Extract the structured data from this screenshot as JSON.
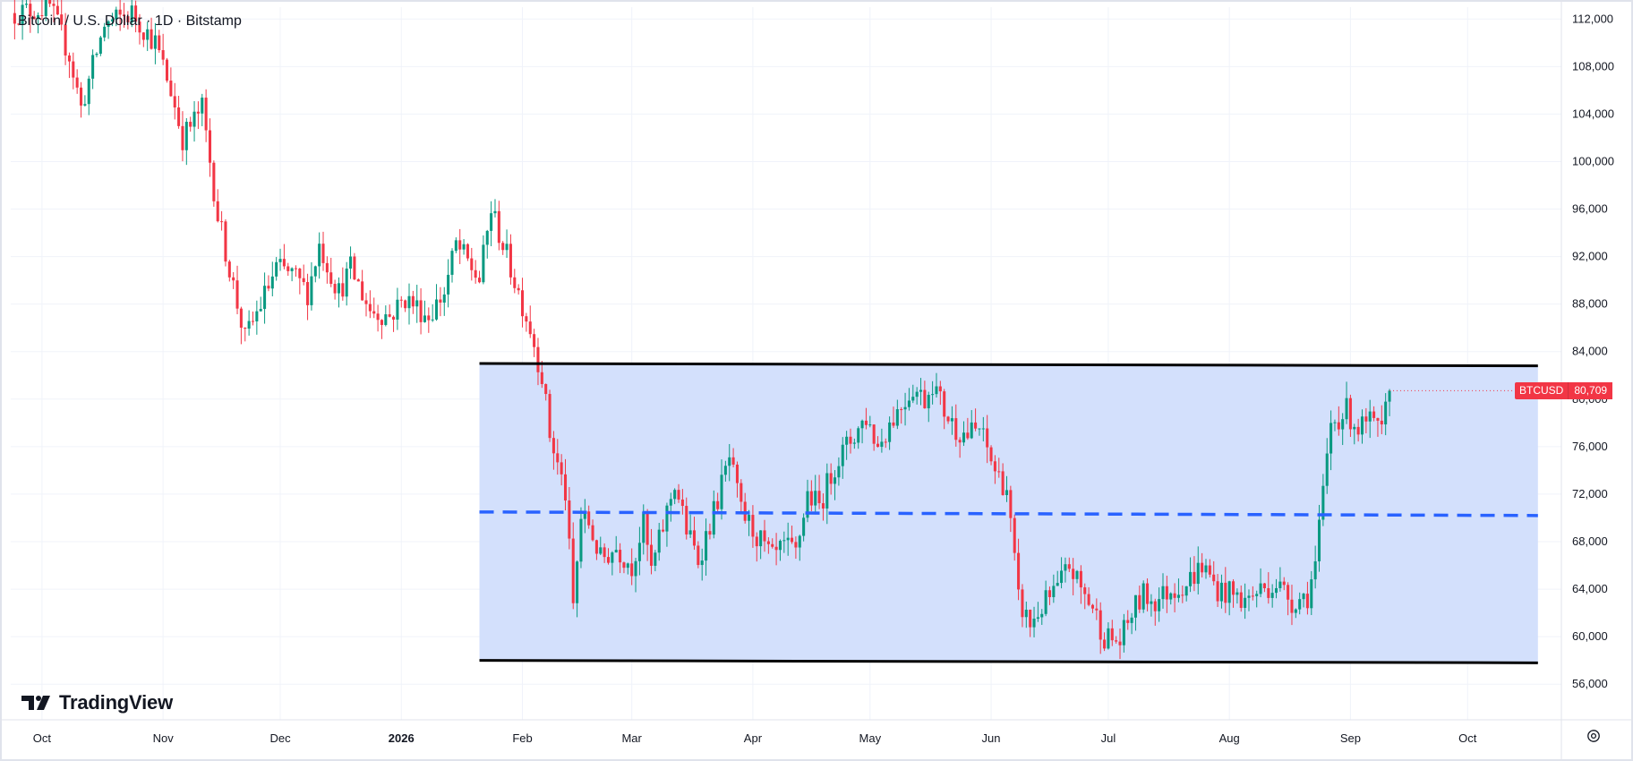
{
  "title": "Bitcoin / U.S. Dollar · 1D · Bitstamp",
  "brand": {
    "text": "TradingView",
    "icon": "tradingview-logo-icon"
  },
  "price_badge": {
    "symbol": "BTCUSD",
    "value": "80,709",
    "color": "#f23645"
  },
  "settings_icon": "gear-icon",
  "colors": {
    "up": "#089981",
    "down": "#f23645",
    "zone": "#d1defc",
    "midline": "#2962ff",
    "bound": "#000000"
  },
  "chart_data": {
    "type": "candlestick",
    "title": "Bitcoin / U.S. Dollar · 1D · Bitstamp",
    "y_ticks": [
      {
        "value": 112000,
        "label": "112,000"
      },
      {
        "value": 108000,
        "label": "108,000"
      },
      {
        "value": 104000,
        "label": "104,000"
      },
      {
        "value": 100000,
        "label": "100,000"
      },
      {
        "value": 96000,
        "label": "96,000"
      },
      {
        "value": 92000,
        "label": "92,000"
      },
      {
        "value": 88000,
        "label": "88,000"
      },
      {
        "value": 84000,
        "label": "84,000"
      },
      {
        "value": 80000,
        "label": "80,000"
      },
      {
        "value": 76000,
        "label": "76,000"
      },
      {
        "value": 72000,
        "label": "72,000"
      },
      {
        "value": 68000,
        "label": "68,000"
      },
      {
        "value": 64000,
        "label": "64,000"
      },
      {
        "value": 60000,
        "label": "60,000"
      },
      {
        "value": 56000,
        "label": "56,000"
      }
    ],
    "x_ticks": [
      {
        "date": "2025-10-01",
        "label": "Oct"
      },
      {
        "date": "2025-11-01",
        "label": "Nov"
      },
      {
        "date": "2025-12-01",
        "label": "Dec"
      },
      {
        "date": "2026-01-01",
        "label": "2026",
        "bold": true
      },
      {
        "date": "2026-02-01",
        "label": "Feb"
      },
      {
        "date": "2026-03-01",
        "label": "Mar"
      },
      {
        "date": "2026-04-01",
        "label": "Apr"
      },
      {
        "date": "2026-05-01",
        "label": "May"
      },
      {
        "date": "2026-06-01",
        "label": "Jun"
      },
      {
        "date": "2026-07-01",
        "label": "Jul"
      },
      {
        "date": "2026-08-01",
        "label": "Aug"
      },
      {
        "date": "2026-09-01",
        "label": "Sep"
      },
      {
        "date": "2026-10-01",
        "label": "Oct"
      }
    ],
    "x_range": [
      "2025-09-23",
      "2026-10-25"
    ],
    "y_range": [
      53000,
      113000
    ],
    "keypoints": [
      [
        "2025-09-24",
        112500
      ],
      [
        "2025-10-03",
        113000
      ],
      [
        "2025-10-08",
        109000
      ],
      [
        "2025-10-11",
        104500
      ],
      [
        "2025-10-17",
        111500
      ],
      [
        "2025-10-24",
        112500
      ],
      [
        "2025-10-30",
        110000
      ],
      [
        "2025-11-03",
        106000
      ],
      [
        "2025-11-06",
        102000
      ],
      [
        "2025-11-11",
        104500
      ],
      [
        "2025-11-15",
        95500
      ],
      [
        "2025-11-20",
        88000
      ],
      [
        "2025-11-22",
        85000
      ],
      [
        "2025-11-26",
        88000
      ],
      [
        "2025-11-30",
        91000
      ],
      [
        "2025-12-04",
        90500
      ],
      [
        "2025-12-08",
        89000
      ],
      [
        "2025-12-11",
        93000
      ],
      [
        "2025-12-16",
        89000
      ],
      [
        "2025-12-19",
        91000
      ],
      [
        "2025-12-24",
        87500
      ],
      [
        "2025-12-29",
        87000
      ],
      [
        "2026-01-02",
        88500
      ],
      [
        "2026-01-08",
        87000
      ],
      [
        "2026-01-12",
        89000
      ],
      [
        "2026-01-15",
        93000
      ],
      [
        "2026-01-18",
        91500
      ],
      [
        "2026-01-21",
        90000
      ],
      [
        "2026-01-24",
        96000
      ],
      [
        "2026-01-26",
        94000
      ],
      [
        "2026-01-29",
        91000
      ],
      [
        "2026-02-01",
        88000
      ],
      [
        "2026-02-03",
        86000
      ],
      [
        "2026-02-06",
        82000
      ],
      [
        "2026-02-08",
        77000
      ],
      [
        "2026-02-12",
        72000
      ],
      [
        "2026-02-14",
        62500
      ],
      [
        "2026-02-16",
        70000
      ],
      [
        "2026-02-18",
        69500
      ],
      [
        "2026-02-21",
        66500
      ],
      [
        "2026-02-25",
        67500
      ],
      [
        "2026-03-01",
        66000
      ],
      [
        "2026-03-04",
        69500
      ],
      [
        "2026-03-06",
        65500
      ],
      [
        "2026-03-08",
        68000
      ],
      [
        "2026-03-12",
        73000
      ],
      [
        "2026-03-15",
        69000
      ],
      [
        "2026-03-18",
        66500
      ],
      [
        "2026-03-22",
        70500
      ],
      [
        "2026-03-26",
        75000
      ],
      [
        "2026-03-29",
        70500
      ],
      [
        "2026-04-02",
        68500
      ],
      [
        "2026-04-06",
        66500
      ],
      [
        "2026-04-09",
        67500
      ],
      [
        "2026-04-12",
        67000
      ],
      [
        "2026-04-15",
        72000
      ],
      [
        "2026-04-18",
        71000
      ],
      [
        "2026-04-22",
        74500
      ],
      [
        "2026-04-26",
        76500
      ],
      [
        "2026-04-30",
        78500
      ],
      [
        "2026-05-03",
        76000
      ],
      [
        "2026-05-06",
        78000
      ],
      [
        "2026-05-09",
        79500
      ],
      [
        "2026-05-12",
        81000
      ],
      [
        "2026-05-15",
        80000
      ],
      [
        "2026-05-17",
        81500
      ],
      [
        "2026-05-20",
        79000
      ],
      [
        "2026-05-23",
        77500
      ],
      [
        "2026-05-26",
        77000
      ],
      [
        "2026-05-29",
        77500
      ],
      [
        "2026-06-02",
        74000
      ],
      [
        "2026-06-05",
        72500
      ],
      [
        "2026-06-08",
        63000
      ],
      [
        "2026-06-11",
        61000
      ],
      [
        "2026-06-14",
        62500
      ],
      [
        "2026-06-18",
        64000
      ],
      [
        "2026-06-21",
        66000
      ],
      [
        "2026-06-24",
        64000
      ],
      [
        "2026-06-27",
        62500
      ],
      [
        "2026-06-30",
        60000
      ],
      [
        "2026-07-04",
        59500
      ],
      [
        "2026-07-07",
        62000
      ],
      [
        "2026-07-10",
        63500
      ],
      [
        "2026-07-13",
        63000
      ],
      [
        "2026-07-17",
        64000
      ],
      [
        "2026-07-21",
        64500
      ],
      [
        "2026-07-25",
        66000
      ],
      [
        "2026-07-29",
        64000
      ],
      [
        "2026-08-02",
        63500
      ],
      [
        "2026-08-05",
        63000
      ],
      [
        "2026-08-09",
        64000
      ],
      [
        "2026-08-13",
        64500
      ],
      [
        "2026-08-17",
        63000
      ],
      [
        "2026-08-21",
        63500
      ],
      [
        "2026-08-23",
        66000
      ],
      [
        "2026-08-25",
        72000
      ],
      [
        "2026-08-27",
        78000
      ],
      [
        "2026-08-31",
        79000
      ],
      [
        "2026-09-03",
        77500
      ],
      [
        "2026-09-06",
        78000
      ],
      [
        "2026-09-09",
        77000
      ],
      [
        "2026-09-11",
        80709
      ]
    ],
    "range_zone": {
      "start": "2026-01-21",
      "end": "2026-10-19",
      "upper": {
        "start": 83000,
        "end": 82800
      },
      "lower": {
        "start": 58000,
        "end": 57800
      },
      "mid": {
        "start": 70500,
        "end": 70200
      }
    },
    "last_price": 80709
  }
}
